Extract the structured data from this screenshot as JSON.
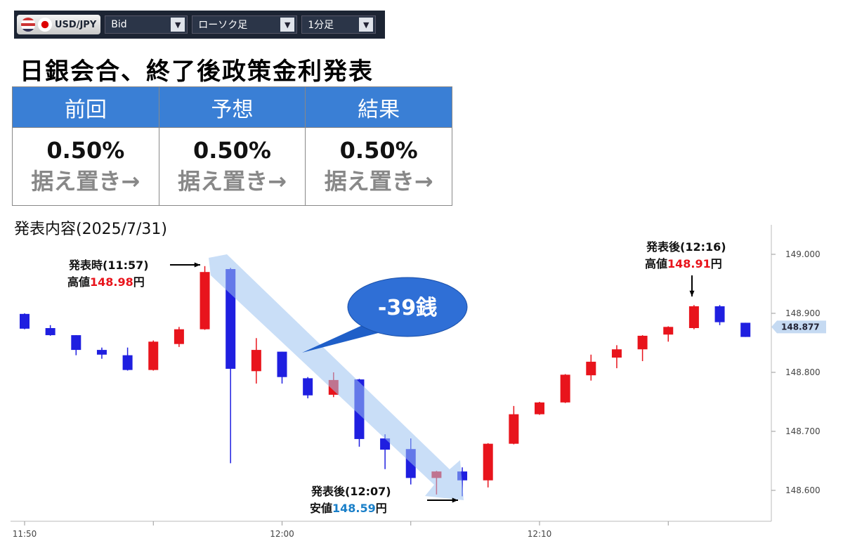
{
  "toolbar": {
    "pair": "USD/JPY",
    "price_type": "Bid",
    "chart_style": "ローソク足",
    "timeframe": "1分足"
  },
  "header": {
    "title": "日銀会合、終了後政策金利発表"
  },
  "table": {
    "headers": [
      "前回",
      "予想",
      "結果"
    ],
    "rows": [
      [
        "0.50%",
        "0.50%",
        "0.50%"
      ],
      [
        "据え置き→",
        "据え置き→",
        "据え置き→"
      ]
    ]
  },
  "chart_data": {
    "type": "candlestick",
    "subtitle": "発表内容(2025/7/31)",
    "categories": [
      "11:50",
      null,
      null,
      null,
      null,
      null,
      null,
      null,
      null,
      null,
      "12:00",
      null,
      null,
      null,
      null,
      null,
      null,
      null,
      null,
      null,
      "12:10",
      null,
      null,
      null,
      null,
      null,
      null,
      null,
      null
    ],
    "open": [
      148.899,
      148.875,
      148.863,
      148.838,
      148.829,
      148.804,
      148.848,
      148.873,
      148.975,
      148.802,
      148.835,
      148.79,
      148.762,
      148.788,
      148.688,
      148.67,
      148.621,
      148.632,
      148.617,
      148.679,
      148.729,
      148.749,
      148.795,
      148.825,
      148.839,
      148.864,
      148.875,
      148.912,
      148.884
    ],
    "high": [
      148.9,
      148.88,
      148.863,
      148.842,
      148.842,
      148.854,
      148.877,
      148.98,
      148.977,
      148.858,
      148.835,
      148.792,
      148.8,
      148.789,
      148.695,
      148.688,
      148.633,
      148.639,
      148.68,
      148.743,
      148.75,
      148.797,
      148.83,
      148.846,
      148.863,
      148.878,
      148.914,
      148.914,
      148.884
    ],
    "low": [
      148.873,
      148.862,
      148.829,
      148.823,
      148.803,
      148.803,
      148.843,
      148.872,
      148.646,
      148.781,
      148.781,
      148.756,
      148.758,
      148.674,
      148.636,
      148.61,
      148.593,
      148.59,
      148.605,
      148.678,
      148.728,
      148.748,
      148.786,
      148.807,
      148.819,
      148.852,
      148.873,
      148.88,
      148.86
    ],
    "close": [
      148.874,
      148.863,
      148.838,
      148.83,
      148.804,
      148.852,
      148.873,
      148.97,
      148.806,
      148.838,
      148.792,
      148.761,
      148.787,
      148.687,
      148.669,
      148.621,
      148.632,
      148.617,
      148.679,
      148.729,
      148.749,
      148.796,
      148.818,
      148.839,
      148.862,
      148.877,
      148.912,
      148.885,
      148.86
    ],
    "up_color": "#e8141c",
    "down_color": "#1f1fe0",
    "ylim": [
      148.55,
      149.05
    ],
    "yticks": [
      {
        "value": 148.6,
        "label": "148.600"
      },
      {
        "value": 148.7,
        "label": "148.700"
      },
      {
        "value": 148.8,
        "label": "148.800"
      },
      {
        "value": 148.9,
        "label": "148.900"
      },
      {
        "value": 149.0,
        "label": "149.000"
      }
    ],
    "current_price": {
      "value": 148.877,
      "label": "148.877"
    },
    "annotations": [
      {
        "label": "発表時(11:57)",
        "prefix": "高値",
        "value": "148.98",
        "suffix": "円",
        "color": "#e8141c"
      },
      {
        "label": "発表後(12:16)",
        "prefix": "高値",
        "value": "148.91",
        "suffix": "円",
        "color": "#e8141c"
      },
      {
        "label": "発表後(12:07)",
        "prefix": "安値",
        "value": "148.59",
        "suffix": "円",
        "color": "#1a7fc8"
      }
    ],
    "callout": "-39銭"
  }
}
